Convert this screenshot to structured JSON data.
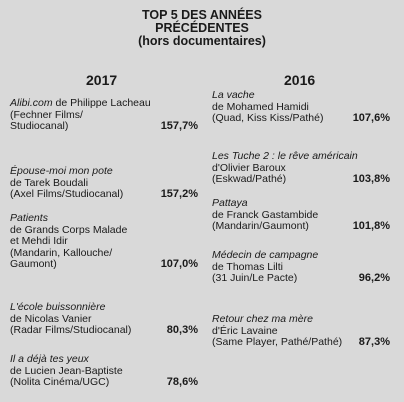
{
  "title": [
    "TOP 5 DES ANNÉES",
    "PRÉCÉDENTES",
    "(hors documentaires)"
  ],
  "columns": [
    {
      "year": "2017",
      "entries": [
        {
          "film": "Alibi.com",
          "rest": [
            "de Philippe Lacheau"
          ],
          "lines": [
            "(Fechner Films/",
            "Studiocanal)"
          ],
          "pct": "157,7%"
        },
        {
          "film": "Épouse-moi mon pote",
          "rest": [],
          "lines": [
            "de Tarek Boudali",
            "(Axel Films/Studiocanal)"
          ],
          "pct": "157,2%"
        },
        {
          "film": "Patients",
          "rest": [],
          "lines": [
            "de Grands Corps Malade",
            "et Mehdi Idir",
            "(Mandarin, Kallouche/",
            "Gaumont)"
          ],
          "pct": "107,0%"
        },
        {
          "film": "L'école buissonnière",
          "rest": [],
          "lines": [
            "de Nicolas Vanier",
            "(Radar Films/Studiocanal)"
          ],
          "pct": "80,3%"
        },
        {
          "film": "Il a déjà tes yeux",
          "rest": [],
          "lines": [
            "de Lucien Jean-Baptiste",
            "(Nolita Cinéma/UGC)"
          ],
          "pct": "78,6%"
        }
      ]
    },
    {
      "year": "2016",
      "entries": [
        {
          "film": "La vache",
          "rest": [],
          "lines": [
            "de Mohamed Hamidi",
            "(Quad, Kiss Kiss/Pathé)"
          ],
          "pct": "107,6%"
        },
        {
          "film": "Les Tuche 2 : le rêve américain",
          "rest": [],
          "lines": [
            "d'Olivier Baroux",
            "(Eskwad/Pathé)"
          ],
          "pct": "103,8%"
        },
        {
          "film": "Pattaya",
          "rest": [],
          "lines": [
            "de Franck Gastambide",
            "(Mandarin/Gaumont)"
          ],
          "pct": "101,8%"
        },
        {
          "film": "Médecin de campagne",
          "rest": [],
          "lines": [
            "de Thomas Lilti",
            "(31 Juin/Le Pacte)"
          ],
          "pct": "96,2%"
        },
        {
          "film": "Retour chez ma mère",
          "rest": [],
          "lines": [
            "d'Éric Lavaine",
            "(Same Player, Pathé/Pathé)"
          ],
          "pct": "87,3%"
        }
      ]
    }
  ]
}
